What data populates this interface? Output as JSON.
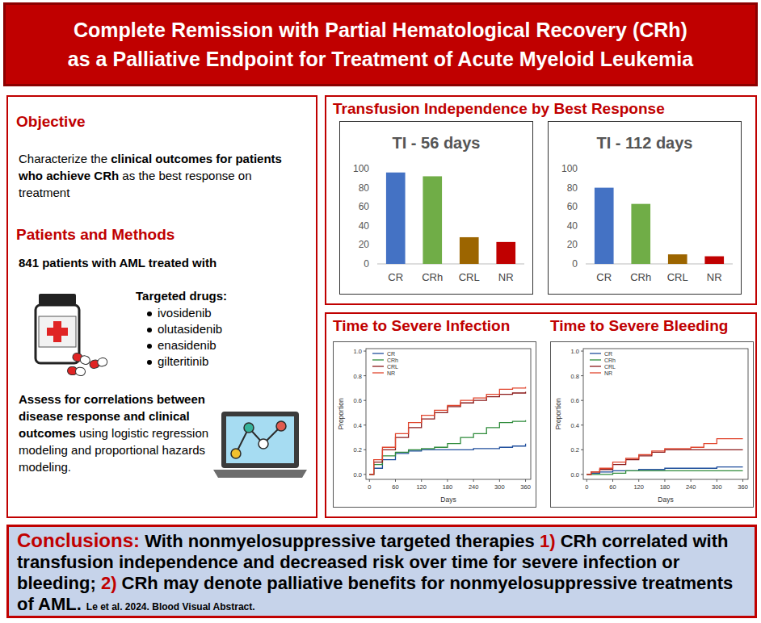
{
  "header": {
    "title": [
      "Complete Remission with Partial Hematological Recovery (CRh)",
      "as a Palliative Endpoint for Treatment of Acute Myeloid Leukemia"
    ]
  },
  "objective": {
    "heading": "Objective",
    "text": [
      {
        "text": "Characterize the ",
        "bold": false
      },
      {
        "text": "clinical outcomes for patients who achieve CRh",
        "bold": true
      },
      {
        "text": " as the best response on treatment",
        "bold": false
      }
    ]
  },
  "methods": {
    "heading": "Patients and Methods",
    "patients": "841 patients with AML treated with",
    "drugs_heading": "Targeted drugs:",
    "drugs": [
      "ivosidenib",
      "olutasidenib",
      "enasidenib",
      "gilteritinib"
    ],
    "analysis": [
      {
        "text": "Assess for correlations between disease response and clinical outcomes",
        "bold": true
      },
      {
        "text": " using logistic regression modeling and proportional hazards modeling.",
        "bold": false
      }
    ]
  },
  "panels": {
    "transfusion": "Transfusion Independence by Best Response"
  },
  "chart_data": [
    {
      "type": "bar",
      "title": "TI - 56 days",
      "categories": [
        "CR",
        "CRh",
        "CRL",
        "NR"
      ],
      "values": [
        96,
        92,
        28,
        23
      ],
      "colors": [
        "#4472c4",
        "#70ad47",
        "#9c6500",
        "#c00000"
      ],
      "ylim": [
        0,
        100
      ],
      "yticks": [
        0,
        20,
        40,
        60,
        80,
        100
      ],
      "grid": false
    },
    {
      "type": "bar",
      "title": "TI - 112 days",
      "categories": [
        "CR",
        "CRh",
        "CRL",
        "NR"
      ],
      "values": [
        80,
        63,
        10,
        8
      ],
      "colors": [
        "#4472c4",
        "#70ad47",
        "#9c6500",
        "#c00000"
      ],
      "ylim": [
        0,
        100
      ],
      "yticks": [
        0,
        20,
        40,
        60,
        80,
        100
      ],
      "grid": false
    },
    {
      "type": "line",
      "title": "Time to Severe Infection",
      "x_label": "Days",
      "y_label": "Proportion",
      "line_style": "step",
      "legend": "upper left",
      "grid": false,
      "x": [
        0,
        10,
        30,
        60,
        90,
        120,
        150,
        180,
        210,
        240,
        270,
        300,
        330,
        360
      ],
      "xlim": [
        -8,
        372
      ],
      "xticks": [
        0,
        60,
        120,
        180,
        240,
        300,
        360
      ],
      "ylim": [
        -0.04,
        1.02
      ],
      "yticks": [
        {
          "value": 0,
          "label": "0.0"
        },
        {
          "value": 0.2,
          "label": "0.2"
        },
        {
          "value": 0.4,
          "label": "0.4"
        },
        {
          "value": 0.6,
          "label": "0.6"
        },
        {
          "value": 0.8,
          "label": "0.8"
        },
        {
          "value": 1,
          "label": "1.0"
        }
      ],
      "series": [
        {
          "name": "CR",
          "color": "#1f4e9c",
          "values": [
            0,
            0.05,
            0.12,
            0.17,
            0.19,
            0.2,
            0.2,
            0.2,
            0.2,
            0.21,
            0.21,
            0.22,
            0.23,
            0.25
          ]
        },
        {
          "name": "CRh",
          "color": "#2e8b3a",
          "values": [
            0,
            0.08,
            0.15,
            0.18,
            0.2,
            0.21,
            0.22,
            0.25,
            0.3,
            0.33,
            0.38,
            0.42,
            0.43,
            0.44
          ]
        },
        {
          "name": "CRL",
          "color": "#8b1a1a",
          "values": [
            0,
            0.1,
            0.2,
            0.3,
            0.38,
            0.45,
            0.5,
            0.55,
            0.58,
            0.6,
            0.63,
            0.65,
            0.66,
            0.67
          ]
        },
        {
          "name": "NR",
          "color": "#e0442c",
          "values": [
            0,
            0.12,
            0.22,
            0.33,
            0.42,
            0.48,
            0.52,
            0.56,
            0.6,
            0.62,
            0.65,
            0.69,
            0.7,
            0.71
          ]
        }
      ]
    },
    {
      "type": "line",
      "title": "Time to Severe Bleeding",
      "x_label": "Days",
      "y_label": "Proportion",
      "line_style": "step",
      "legend": "upper left",
      "grid": false,
      "x": [
        0,
        10,
        30,
        60,
        90,
        120,
        150,
        180,
        210,
        240,
        270,
        300,
        330,
        360
      ],
      "xlim": [
        -8,
        372
      ],
      "xticks": [
        0,
        60,
        120,
        180,
        240,
        300,
        360
      ],
      "ylim": [
        -0.04,
        1.02
      ],
      "yticks": [
        {
          "value": 0,
          "label": "0.0"
        },
        {
          "value": 0.2,
          "label": "0.2"
        },
        {
          "value": 0.4,
          "label": "0.4"
        },
        {
          "value": 0.6,
          "label": "0.6"
        },
        {
          "value": 0.8,
          "label": "0.8"
        },
        {
          "value": 1,
          "label": "1.0"
        }
      ],
      "series": [
        {
          "name": "CR",
          "color": "#1f4e9c",
          "values": [
            0,
            0.01,
            0.02,
            0.03,
            0.03,
            0.04,
            0.04,
            0.05,
            0.05,
            0.05,
            0.05,
            0.06,
            0.06,
            0.06
          ]
        },
        {
          "name": "CRh",
          "color": "#2e8b3a",
          "values": [
            0,
            0,
            0,
            0.01,
            0.03,
            0.03,
            0.03,
            0.03,
            0.03,
            0.03,
            0.03,
            0.03,
            0.03,
            0.03
          ]
        },
        {
          "name": "CRL",
          "color": "#8b1a1a",
          "values": [
            0,
            0.02,
            0.04,
            0.08,
            0.12,
            0.15,
            0.18,
            0.2,
            0.2,
            0.2,
            0.2,
            0.2,
            0.2,
            0.2
          ]
        },
        {
          "name": "NR",
          "color": "#e0442c",
          "values": [
            0,
            0.02,
            0.05,
            0.1,
            0.13,
            0.16,
            0.19,
            0.21,
            0.21,
            0.22,
            0.25,
            0.29,
            0.29,
            0.29
          ]
        }
      ]
    }
  ],
  "conclusions": {
    "heading": "Conclusions:",
    "text": [
      {
        "text": " With nonmyelosuppressive targeted therapies ",
        "highlight": false
      },
      {
        "text": "1)",
        "highlight": true
      },
      {
        "text": " CRh correlated with transfusion independence and decreased risk over time for severe infection or bleeding; ",
        "highlight": false
      },
      {
        "text": "2)",
        "highlight": true
      },
      {
        "text": " CRh may denote palliative benefits for nonmyelosuppressive treatments of AML.",
        "highlight": false
      }
    ],
    "citation": "Le et al. 2024. Blood Visual Abstract."
  }
}
